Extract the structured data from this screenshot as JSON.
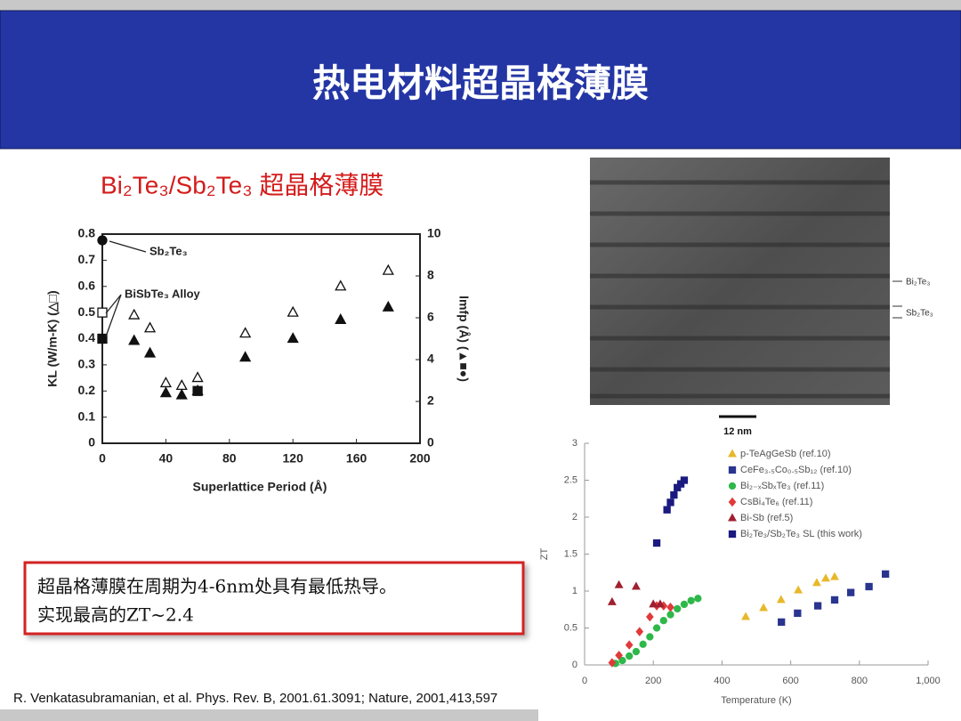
{
  "header": {
    "title": "热电材料超晶格薄膜"
  },
  "subtitle": "Bi₂Te₃/Sb₂Te₃ 超晶格薄膜",
  "note": {
    "lines": [
      "超晶格薄膜在周期为4-6nm处具有最低热导。",
      "实现最高的ZT~2.4"
    ]
  },
  "image": {
    "labels": [
      "Bi₂Te₃",
      "Sb₂Te₃"
    ],
    "scale": "12 nm"
  },
  "citation": "R. Venkatasubramanian, et al. Phys. Rev. B, 2001.61.3091; Nature, 2001,413,597",
  "chart_data": [
    {
      "type": "scatter",
      "frame": true,
      "x_label": "Superlattice Period (Å)",
      "y_label": "KL (W/m-K) (△□)",
      "y2_label": "lmfp (Å) (▲■●)",
      "xlim": [
        0,
        200
      ],
      "xticks": [
        0,
        40,
        80,
        120,
        160,
        200
      ],
      "ylim": [
        0,
        0.8
      ],
      "yticks": [
        0,
        0.1,
        0.2,
        0.3,
        0.4,
        0.5,
        0.6,
        0.7,
        0.8
      ],
      "y2lim": [
        0,
        10
      ],
      "y2ticks": [
        0,
        2,
        4,
        6,
        8,
        10
      ],
      "annotations": [
        "Sb₂Te₃",
        "BiSbTe₃ Alloy"
      ],
      "series": [
        {
          "marker": "triangle-open",
          "color": "#111111",
          "x": [
            20,
            30,
            40,
            50,
            60,
            90,
            120,
            150,
            180
          ],
          "values": [
            0.49,
            0.44,
            0.23,
            0.22,
            0.25,
            0.42,
            0.5,
            0.6,
            0.66
          ]
        },
        {
          "marker": "square-open",
          "color": "#111111",
          "x": [
            0
          ],
          "values": [
            0.5
          ]
        },
        {
          "marker": "triangle",
          "color": "#111111",
          "axis": "y2",
          "x": [
            20,
            30,
            40,
            50,
            60,
            90,
            120,
            150,
            180
          ],
          "values": [
            4.9,
            4.3,
            2.4,
            2.3,
            2.5,
            4.1,
            5.0,
            5.9,
            6.5
          ]
        },
        {
          "marker": "square",
          "color": "#111111",
          "axis": "y2",
          "x": [
            0,
            60
          ],
          "values": [
            5.0,
            2.5
          ]
        },
        {
          "marker": "circle",
          "color": "#111111",
          "axis": "y2",
          "x": [
            0
          ],
          "values": [
            9.7
          ]
        }
      ]
    },
    {
      "type": "scatter",
      "frame": false,
      "legend": "upper right",
      "x_label": "Temperature (K)",
      "y_label": "ZT",
      "xlim": [
        0,
        1000
      ],
      "xticks": [
        0,
        200,
        400,
        600,
        800,
        {
          "value": 1000,
          "label": "1,000"
        }
      ],
      "ylim": [
        0,
        3
      ],
      "yticks": [
        0,
        0.5,
        1,
        1.5,
        2,
        2.5,
        3
      ],
      "series": [
        {
          "name": "p-TeAgGeSb (ref.10)",
          "marker": "triangle",
          "color": "#e8b82a",
          "x": [
            469,
            521,
            572,
            622,
            676,
            702,
            728
          ],
          "values": [
            0.65,
            0.77,
            0.88,
            1.01,
            1.11,
            1.17,
            1.19
          ]
        },
        {
          "name": "CeFe₃.₅Co₀.₅Sb₁₂ (ref.10)",
          "marker": "square",
          "color": "#2a3590",
          "x": [
            573,
            620,
            679,
            728,
            775,
            828,
            876
          ],
          "values": [
            0.58,
            0.7,
            0.8,
            0.88,
            0.98,
            1.06,
            1.23
          ]
        },
        {
          "name": "Bi₂₋ₓSbₓTe₃ (ref.11)",
          "marker": "circle",
          "color": "#2fb84a",
          "x": [
            90,
            110,
            130,
            150,
            170,
            190,
            210,
            230,
            250,
            270,
            290,
            310,
            330
          ],
          "values": [
            0.02,
            0.06,
            0.12,
            0.18,
            0.28,
            0.38,
            0.5,
            0.6,
            0.68,
            0.76,
            0.82,
            0.87,
            0.9
          ]
        },
        {
          "name": "CsBi₄Te₆ (ref.11)",
          "marker": "diamond",
          "color": "#e03a3a",
          "x": [
            80,
            100,
            130,
            160,
            190,
            210,
            230,
            250
          ],
          "values": [
            0.03,
            0.13,
            0.27,
            0.45,
            0.65,
            0.8,
            0.8,
            0.78
          ]
        },
        {
          "name": "Bi-Sb (ref.5)",
          "marker": "triangle",
          "color": "#a02030",
          "x": [
            80,
            100,
            150,
            200,
            220
          ],
          "values": [
            0.85,
            1.08,
            1.06,
            0.82,
            0.82
          ]
        },
        {
          "name": "Bi₂Te₃/Sb₂Te₃ SL (this work)",
          "marker": "square",
          "color": "#1a1a80",
          "x": [
            210,
            240,
            250,
            260,
            270,
            280,
            290
          ],
          "values": [
            1.65,
            2.1,
            2.2,
            2.3,
            2.4,
            2.45,
            2.5
          ]
        }
      ]
    }
  ]
}
